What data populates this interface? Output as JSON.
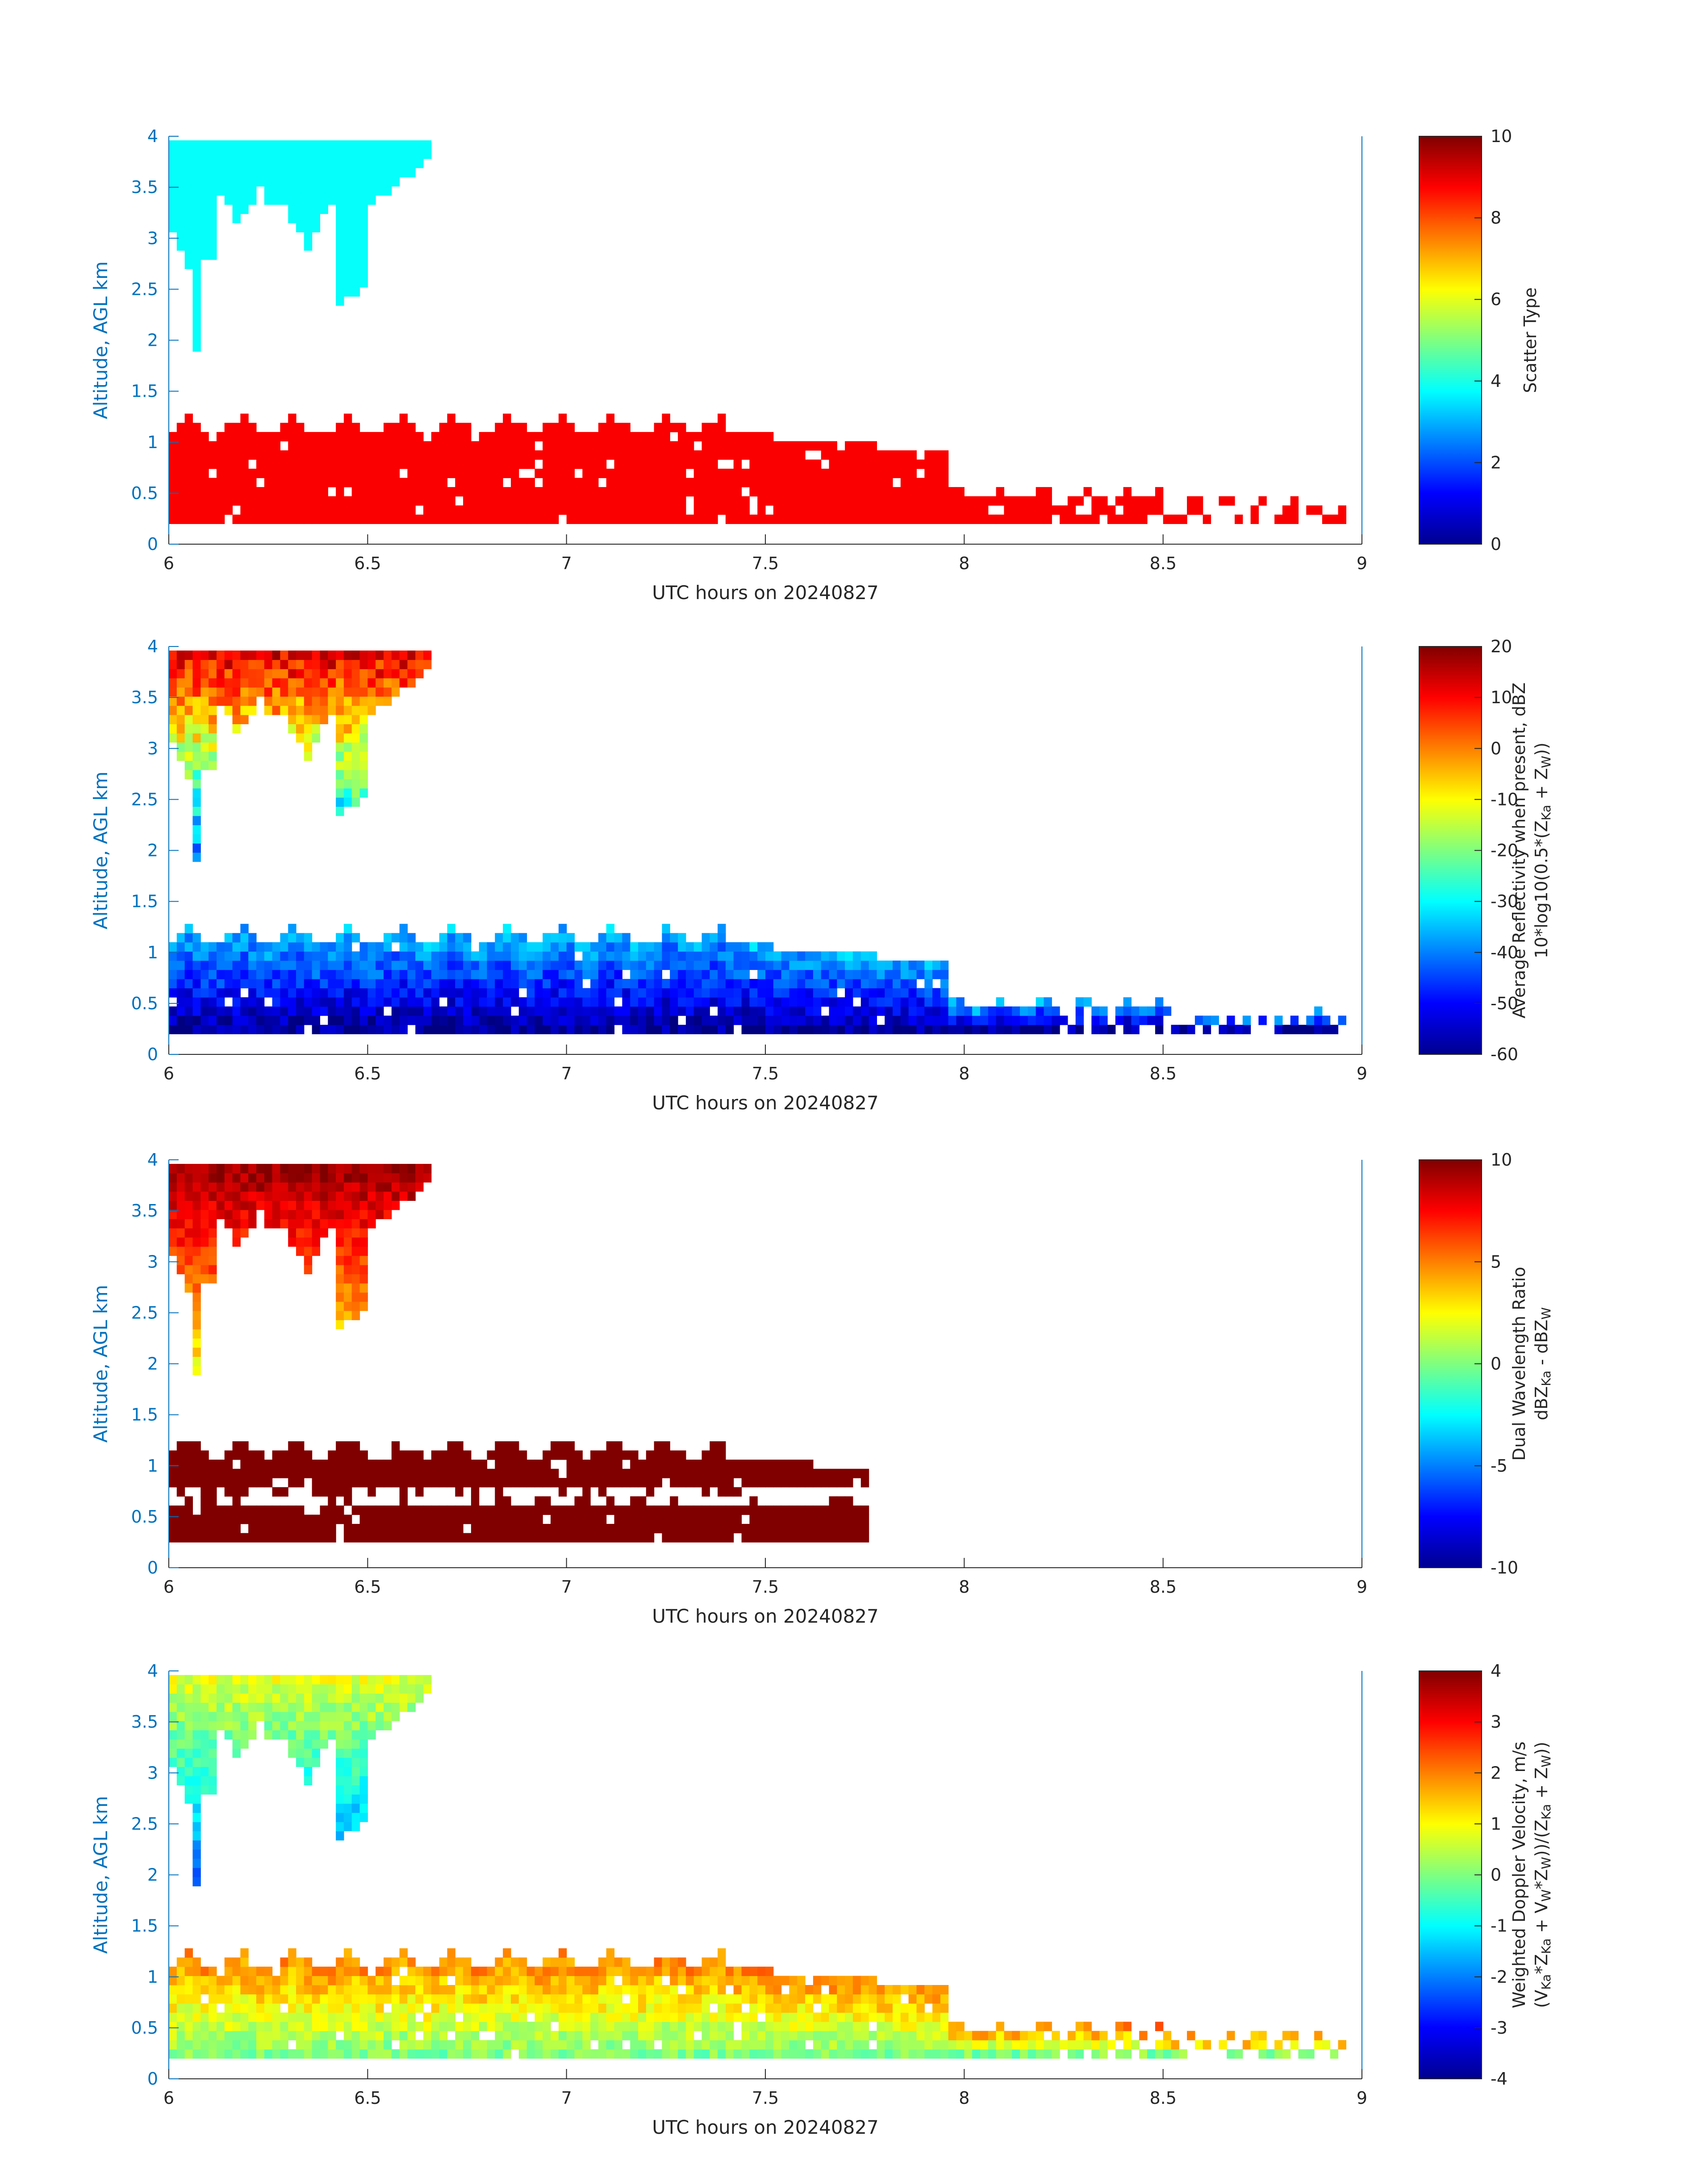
{
  "chart_data": [
    {
      "type": "heatmap",
      "xlabel": "UTC hours on 20240827",
      "ylabel": "Altitude, AGL km",
      "xlim": [
        6,
        9
      ],
      "ylim": [
        0,
        4
      ],
      "xticks": [
        "6",
        "6.5",
        "7",
        "7.5",
        "8",
        "8.5",
        "9"
      ],
      "yticks": [
        "0",
        "0.5",
        "1",
        "1.5",
        "2",
        "2.5",
        "3",
        "3.5",
        "4"
      ],
      "colorbar": {
        "label_lines": [
          "Scatter Type"
        ],
        "clim": [
          0,
          10
        ],
        "ticks": [
          "0",
          "2",
          "4",
          "6",
          "8",
          "10"
        ],
        "colormap": "jet"
      },
      "regions": [
        {
          "name": "upper cloud",
          "x_range": [
            6.0,
            6.65
          ],
          "y_range": [
            1.9,
            4.0
          ],
          "value": 3.8
        },
        {
          "name": "lower layer",
          "x_range": [
            6.0,
            8.95
          ],
          "y_range": [
            0.2,
            1.2
          ],
          "value": 8.8
        }
      ]
    },
    {
      "type": "heatmap",
      "xlabel": "UTC hours on 20240827",
      "ylabel": "Altitude, AGL km",
      "xlim": [
        6,
        9
      ],
      "ylim": [
        0,
        4
      ],
      "xticks": [
        "6",
        "6.5",
        "7",
        "7.5",
        "8",
        "8.5",
        "9"
      ],
      "yticks": [
        "0",
        "0.5",
        "1",
        "1.5",
        "2",
        "2.5",
        "3",
        "3.5",
        "4"
      ],
      "colorbar": {
        "label_lines": [
          "Average Reflectivity when present, dBZ",
          "10*log10(0.5*(Z<sub>Ka</sub> + Z<sub>W</sub>))"
        ],
        "clim": [
          -60,
          20
        ],
        "ticks": [
          "-60",
          "-50",
          "-40",
          "-30",
          "-20",
          "-10",
          "0",
          "10",
          "20"
        ],
        "colormap": "jet"
      },
      "regions": [
        {
          "name": "upper cloud",
          "x_range": [
            6.0,
            6.65
          ],
          "y_range": [
            1.9,
            4.0
          ],
          "value_range": [
            -45,
            15
          ]
        },
        {
          "name": "lower layer",
          "x_range": [
            6.0,
            8.95
          ],
          "y_range": [
            0.2,
            1.2
          ],
          "value_range": [
            -58,
            -30
          ]
        }
      ]
    },
    {
      "type": "heatmap",
      "xlabel": "UTC hours on 20240827",
      "ylabel": "Altitude, AGL km",
      "xlim": [
        6,
        9
      ],
      "ylim": [
        0,
        4
      ],
      "xticks": [
        "6",
        "6.5",
        "7",
        "7.5",
        "8",
        "8.5",
        "9"
      ],
      "yticks": [
        "0",
        "0.5",
        "1",
        "1.5",
        "2",
        "2.5",
        "3",
        "3.5",
        "4"
      ],
      "colorbar": {
        "label_lines": [
          "Dual Wavelength Ratio",
          "dBZ<sub>Ka</sub> - dBZ<sub>W</sub>"
        ],
        "clim": [
          -10,
          10
        ],
        "ticks": [
          "-10",
          "-5",
          "0",
          "5",
          "10"
        ],
        "colormap": "jet"
      },
      "regions": [
        {
          "name": "upper cloud",
          "x_range": [
            6.0,
            6.65
          ],
          "y_range": [
            1.9,
            4.0
          ],
          "value_range": [
            2,
            10
          ]
        },
        {
          "name": "lower layer",
          "x_range": [
            6.0,
            7.75
          ],
          "y_range": [
            0.25,
            1.1
          ],
          "value": 10
        }
      ]
    },
    {
      "type": "heatmap",
      "xlabel": "UTC hours on 20240827",
      "ylabel": "Altitude, AGL km",
      "xlim": [
        6,
        9
      ],
      "ylim": [
        0,
        4
      ],
      "xticks": [
        "6",
        "6.5",
        "7",
        "7.5",
        "8",
        "8.5",
        "9"
      ],
      "yticks": [
        "0",
        "0.5",
        "1",
        "1.5",
        "2",
        "2.5",
        "3",
        "3.5",
        "4"
      ],
      "colorbar": {
        "label_lines": [
          "Weighted Doppler Velocity, m/s",
          "(V<sub>Ka</sub>*Z<sub>Ka</sub> + V<sub>W</sub>*Z<sub>W</sub>))/(Z<sub>Ka</sub> + Z<sub>W</sub>))"
        ],
        "clim": [
          -4,
          4
        ],
        "ticks": [
          "-4",
          "-3",
          "-2",
          "-1",
          "0",
          "1",
          "2",
          "3",
          "4"
        ],
        "colormap": "jet"
      },
      "regions": [
        {
          "name": "upper cloud",
          "x_range": [
            6.0,
            6.65
          ],
          "y_range": [
            1.9,
            4.0
          ],
          "value_range": [
            -2.5,
            1
          ]
        },
        {
          "name": "lower layer",
          "x_range": [
            6.0,
            8.95
          ],
          "y_range": [
            0.2,
            1.2
          ],
          "value_range": [
            0,
            2.5
          ]
        }
      ]
    }
  ]
}
